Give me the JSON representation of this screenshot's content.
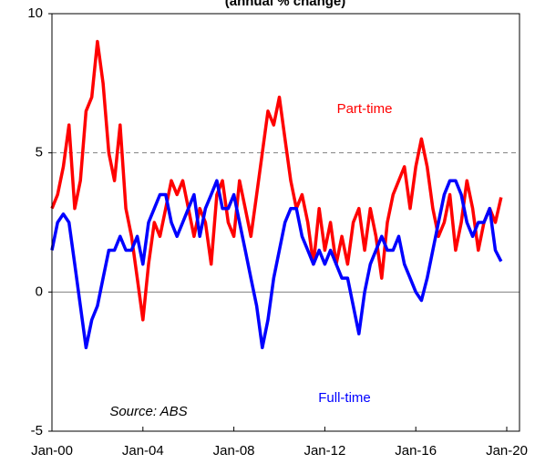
{
  "chart_data": {
    "type": "line",
    "title": "(annual % change)",
    "categories": [
      "Jan-00",
      null,
      null,
      null,
      null,
      null,
      null,
      null,
      null,
      null,
      null,
      null,
      null,
      null,
      null,
      null,
      "Jan-04",
      null,
      null,
      null,
      null,
      null,
      null,
      null,
      null,
      null,
      null,
      null,
      null,
      null,
      null,
      null,
      "Jan-08",
      null,
      null,
      null,
      null,
      null,
      null,
      null,
      null,
      null,
      null,
      null,
      null,
      null,
      null,
      null,
      "Jan-12",
      null,
      null,
      null,
      null,
      null,
      null,
      null,
      null,
      null,
      null,
      null,
      null,
      null,
      null,
      null,
      "Jan-16",
      null,
      null,
      null,
      null,
      null,
      null,
      null,
      null,
      null,
      null,
      null,
      null,
      null,
      null,
      null,
      "Jan-20"
    ],
    "series": [
      {
        "name": "Part-time",
        "color": "#ff0000",
        "values": [
          3.0,
          3.5,
          4.5,
          6.0,
          3.0,
          4.0,
          6.5,
          7.0,
          9.0,
          7.5,
          5.0,
          4.0,
          6.0,
          3.0,
          2.0,
          0.5,
          -1.0,
          1.0,
          2.5,
          2.0,
          3.0,
          4.0,
          3.5,
          4.0,
          3.0,
          2.0,
          3.0,
          2.5,
          1.0,
          3.5,
          4.0,
          2.5,
          2.0,
          4.0,
          3.0,
          2.0,
          3.5,
          5.0,
          6.5,
          6.0,
          7.0,
          5.5,
          4.0,
          3.0,
          3.5,
          2.5,
          1.0,
          3.0,
          1.5,
          2.5,
          1.0,
          2.0,
          1.0,
          2.5,
          3.0,
          1.5,
          3.0,
          2.0,
          0.5,
          2.5,
          3.5,
          4.0,
          4.5,
          3.0,
          4.5,
          5.5,
          4.5,
          3.0,
          2.0,
          2.5,
          3.5,
          1.5,
          2.5,
          4.0,
          3.0,
          1.5,
          2.5,
          3.0,
          2.5,
          3.4,
          null
        ]
      },
      {
        "name": "Full-time",
        "color": "#0000ff",
        "values": [
          1.5,
          2.5,
          2.8,
          2.5,
          1.0,
          -0.5,
          -2.0,
          -1.0,
          -0.5,
          0.5,
          1.5,
          1.5,
          2.0,
          1.5,
          1.5,
          2.0,
          1.0,
          2.5,
          3.0,
          3.5,
          3.5,
          2.5,
          2.0,
          2.5,
          3.0,
          3.5,
          2.0,
          3.0,
          3.5,
          4.0,
          3.0,
          3.0,
          3.5,
          2.5,
          1.5,
          0.5,
          -0.5,
          -2.0,
          -1.0,
          0.5,
          1.5,
          2.5,
          3.0,
          3.0,
          2.0,
          1.5,
          1.0,
          1.5,
          1.0,
          1.5,
          1.0,
          0.5,
          0.5,
          -0.5,
          -1.5,
          0.0,
          1.0,
          1.5,
          2.0,
          1.5,
          1.5,
          2.0,
          1.0,
          0.5,
          0.0,
          -0.3,
          0.5,
          1.5,
          2.5,
          3.5,
          4.0,
          4.0,
          3.5,
          2.5,
          2.0,
          2.5,
          2.5,
          3.0,
          1.5,
          1.1,
          null
        ]
      }
    ],
    "source": "Source: ABS",
    "ylim": [
      -5,
      10
    ],
    "yticks": [
      -5,
      0,
      5,
      10
    ],
    "hlines": [
      {
        "value": 0,
        "style": "solid"
      },
      {
        "value": 5,
        "style": "dashed"
      }
    ]
  }
}
